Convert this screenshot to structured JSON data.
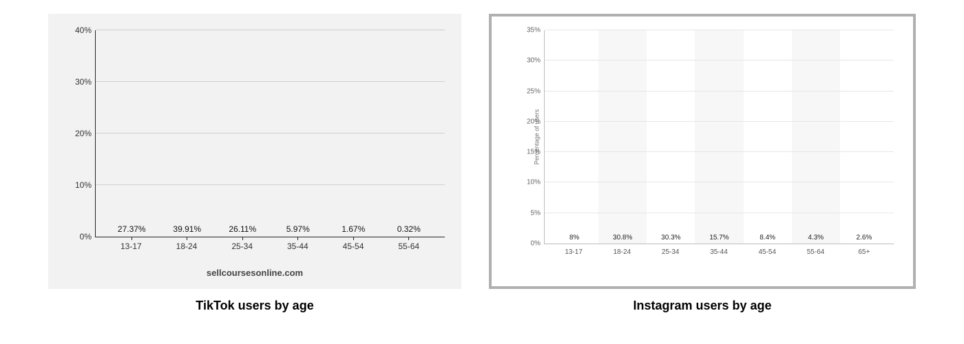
{
  "caption_font_size": 18,
  "tiktok": {
    "type": "bar",
    "caption": "TikTok users by age",
    "attribution": "sellcoursesonline.com",
    "background_color": "#f2f2f2",
    "axis_color": "#222222",
    "grid_color": "#cfcfcf",
    "text_color": "#333333",
    "value_label_color": "#111111",
    "bar_color": "#16307f",
    "bar_width_ratio": 0.62,
    "ylim": [
      0,
      40
    ],
    "ytick_step": 10,
    "yticks": [
      "0%",
      "10%",
      "20%",
      "30%",
      "40%"
    ],
    "categories": [
      "13-17",
      "18-24",
      "25-34",
      "35-44",
      "45-54",
      "55-64"
    ],
    "values": [
      27.37,
      39.91,
      26.11,
      5.97,
      1.67,
      0.32
    ],
    "value_labels": [
      "27.37%",
      "39.91%",
      "26.11%",
      "5.97%",
      "1.67%",
      "0.32%"
    ],
    "label_fontsize": 12,
    "value_fontsize": 12,
    "attrib_fontsize": 13
  },
  "instagram": {
    "type": "bar",
    "caption": "Instagram users by age",
    "background_color": "#ffffff",
    "panel_border_color": "#b0b0b0",
    "panel_border_width": 4,
    "axis_color": "#bbbbbb",
    "grid_color": "#e6e6e6",
    "stripe_color": "#f7f7f7",
    "text_color": "#555555",
    "value_label_color": "#222222",
    "bar_color": "#2f80ed",
    "bar_width_ratio": 0.68,
    "ylim": [
      0,
      35
    ],
    "ytick_step": 5,
    "yticks": [
      "0%",
      "5%",
      "10%",
      "15%",
      "20%",
      "25%",
      "30%",
      "35%"
    ],
    "ylabel": "Percentage of users",
    "categories": [
      "13-17",
      "18-24",
      "25-34",
      "35-44",
      "45-54",
      "55-64",
      "65+"
    ],
    "values": [
      8,
      30.8,
      30.3,
      15.7,
      8.4,
      4.3,
      2.6
    ],
    "value_labels": [
      "8%",
      "30.8%",
      "30.3%",
      "15.7%",
      "8.4%",
      "4.3%",
      "2.6%"
    ],
    "label_fontsize": 10,
    "value_fontsize": 10,
    "ylabel_fontsize": 9
  }
}
